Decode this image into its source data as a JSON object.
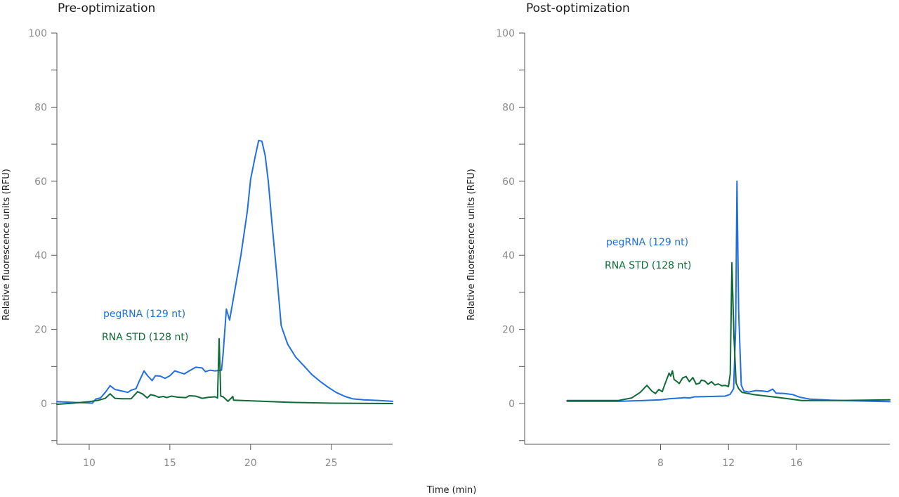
{
  "xlabel": "Time (min)",
  "colors": {
    "pegRNA": "#1f6fe0",
    "rna_std": "#0f6a38"
  },
  "chart_data": [
    {
      "type": "line",
      "title": "Pre-optimization",
      "ylabel": "Relative fluorescence units (RFU)",
      "xlim": [
        8,
        28.8
      ],
      "ylim": [
        -11,
        100
      ],
      "x_ticks": [
        10,
        15,
        20,
        25
      ],
      "x_tick_labels": [
        "10",
        "15",
        "20",
        "25"
      ],
      "y_ticks": [
        0,
        20,
        40,
        60,
        80,
        100
      ],
      "y_tick_labels": [
        "0",
        "20",
        "40",
        "60",
        "80",
        "100"
      ],
      "legend": [
        {
          "label": "pegRNA (129 nt)",
          "color": "#1f6fe0"
        },
        {
          "label": "RNA STD (128 nt)",
          "color": "#0f6a38"
        }
      ],
      "series": [
        {
          "name": "pegRNA (129 nt)",
          "color": "#1f6fe0",
          "points": [
            [
              8.0,
              0.5
            ],
            [
              9.0,
              0.3
            ],
            [
              10.2,
              0.1
            ],
            [
              10.4,
              1.2
            ],
            [
              10.7,
              1.5
            ],
            [
              11.0,
              3.0
            ],
            [
              11.3,
              4.8
            ],
            [
              11.6,
              3.8
            ],
            [
              12.0,
              3.4
            ],
            [
              12.4,
              3.0
            ],
            [
              12.6,
              3.6
            ],
            [
              12.9,
              4.0
            ],
            [
              13.1,
              6.0
            ],
            [
              13.4,
              8.8
            ],
            [
              13.6,
              7.6
            ],
            [
              13.9,
              6.2
            ],
            [
              14.1,
              7.5
            ],
            [
              14.4,
              7.4
            ],
            [
              14.7,
              6.8
            ],
            [
              15.0,
              7.5
            ],
            [
              15.3,
              8.8
            ],
            [
              15.6,
              8.4
            ],
            [
              15.9,
              8.0
            ],
            [
              16.2,
              8.8
            ],
            [
              16.6,
              9.8
            ],
            [
              17.0,
              9.6
            ],
            [
              17.2,
              8.6
            ],
            [
              17.5,
              9.0
            ],
            [
              17.8,
              8.8
            ],
            [
              18.2,
              9.0
            ],
            [
              18.3,
              13.5
            ],
            [
              18.5,
              25.5
            ],
            [
              18.7,
              22.5
            ],
            [
              19.0,
              30.0
            ],
            [
              19.4,
              40.0
            ],
            [
              19.8,
              52.0
            ],
            [
              20.0,
              60.5
            ],
            [
              20.3,
              67.0
            ],
            [
              20.5,
              71.0
            ],
            [
              20.7,
              70.8
            ],
            [
              20.9,
              67.0
            ],
            [
              21.1,
              60.0
            ],
            [
              21.3,
              50.0
            ],
            [
              21.6,
              36.0
            ],
            [
              21.9,
              21.0
            ],
            [
              22.3,
              16.0
            ],
            [
              22.8,
              12.5
            ],
            [
              23.3,
              10.2
            ],
            [
              23.8,
              7.8
            ],
            [
              24.3,
              6.0
            ],
            [
              24.8,
              4.4
            ],
            [
              25.3,
              3.0
            ],
            [
              25.8,
              2.0
            ],
            [
              26.3,
              1.3
            ],
            [
              27.0,
              1.0
            ],
            [
              28.0,
              0.8
            ],
            [
              28.8,
              0.6
            ]
          ]
        },
        {
          "name": "RNA STD (128 nt)",
          "color": "#0f6a38",
          "points": [
            [
              8.0,
              -0.2
            ],
            [
              9.0,
              0.1
            ],
            [
              10.0,
              0.5
            ],
            [
              10.6,
              0.9
            ],
            [
              11.0,
              1.4
            ],
            [
              11.3,
              2.6
            ],
            [
              11.6,
              1.4
            ],
            [
              12.0,
              1.3
            ],
            [
              12.6,
              1.3
            ],
            [
              13.0,
              3.2
            ],
            [
              13.3,
              2.6
            ],
            [
              13.6,
              1.5
            ],
            [
              13.8,
              2.4
            ],
            [
              14.1,
              2.1
            ],
            [
              14.3,
              1.7
            ],
            [
              14.6,
              1.9
            ],
            [
              14.8,
              1.6
            ],
            [
              15.1,
              2.0
            ],
            [
              15.5,
              1.7
            ],
            [
              16.0,
              1.6
            ],
            [
              16.2,
              2.1
            ],
            [
              16.6,
              2.0
            ],
            [
              17.0,
              1.4
            ],
            [
              17.4,
              1.7
            ],
            [
              17.8,
              1.8
            ],
            [
              17.95,
              1.5
            ],
            [
              18.05,
              17.5
            ],
            [
              18.15,
              2.0
            ],
            [
              18.3,
              1.8
            ],
            [
              18.6,
              0.6
            ],
            [
              18.9,
              1.9
            ],
            [
              18.95,
              0.9
            ],
            [
              19.5,
              0.8
            ],
            [
              22.5,
              0.3
            ],
            [
              25.0,
              0.1
            ],
            [
              28.8,
              0.0
            ]
          ]
        }
      ]
    },
    {
      "type": "line",
      "title": "Post-optimization",
      "ylabel": "Relative fluorescence units (RFU)",
      "xlim": [
        0,
        21.5
      ],
      "ylim": [
        -11,
        100
      ],
      "x_ticks": [
        8,
        12,
        16
      ],
      "x_tick_labels": [
        "8",
        "12",
        "16"
      ],
      "y_ticks": [
        0,
        20,
        40,
        60,
        80,
        100
      ],
      "y_tick_labels": [
        "0",
        "20",
        "40",
        "60",
        "80",
        "100"
      ],
      "legend": [
        {
          "label": "pegRNA (129 nt)",
          "color": "#1f6fe0"
        },
        {
          "label": "RNA STD (128 nt)",
          "color": "#0f6a38"
        }
      ],
      "series": [
        {
          "name": "pegRNA (129 nt)",
          "color": "#1f6fe0",
          "points": [
            [
              2.5,
              0.6
            ],
            [
              4.0,
              0.6
            ],
            [
              5.5,
              0.6
            ],
            [
              7.0,
              0.8
            ],
            [
              8.0,
              1.0
            ],
            [
              8.5,
              1.3
            ],
            [
              8.9,
              1.4
            ],
            [
              9.2,
              1.5
            ],
            [
              9.4,
              1.6
            ],
            [
              9.7,
              1.5
            ],
            [
              10.0,
              1.8
            ],
            [
              11.0,
              1.9
            ],
            [
              11.8,
              2.0
            ],
            [
              12.1,
              2.5
            ],
            [
              12.3,
              4.0
            ],
            [
              12.42,
              20.0
            ],
            [
              12.5,
              60.0
            ],
            [
              12.6,
              25.0
            ],
            [
              12.75,
              5.0
            ],
            [
              12.9,
              3.4
            ],
            [
              13.2,
              3.1
            ],
            [
              13.6,
              3.5
            ],
            [
              14.0,
              3.4
            ],
            [
              14.3,
              3.2
            ],
            [
              14.6,
              3.9
            ],
            [
              14.8,
              2.8
            ],
            [
              15.3,
              2.7
            ],
            [
              15.8,
              2.4
            ],
            [
              16.2,
              1.7
            ],
            [
              16.8,
              1.2
            ],
            [
              18.0,
              0.9
            ],
            [
              19.5,
              0.7
            ],
            [
              21.5,
              0.5
            ]
          ]
        },
        {
          "name": "RNA STD (128 nt)",
          "color": "#0f6a38",
          "points": [
            [
              2.5,
              0.8
            ],
            [
              4.0,
              0.8
            ],
            [
              5.5,
              0.8
            ],
            [
              6.3,
              1.5
            ],
            [
              6.8,
              3.0
            ],
            [
              7.2,
              4.9
            ],
            [
              7.5,
              3.3
            ],
            [
              7.7,
              2.7
            ],
            [
              7.9,
              3.8
            ],
            [
              8.1,
              3.2
            ],
            [
              8.2,
              4.5
            ],
            [
              8.5,
              8.2
            ],
            [
              8.6,
              7.4
            ],
            [
              8.7,
              8.8
            ],
            [
              8.8,
              6.5
            ],
            [
              9.0,
              5.8
            ],
            [
              9.1,
              5.4
            ],
            [
              9.3,
              6.9
            ],
            [
              9.5,
              7.3
            ],
            [
              9.7,
              5.9
            ],
            [
              9.9,
              7.0
            ],
            [
              10.1,
              5.2
            ],
            [
              10.3,
              5.5
            ],
            [
              10.4,
              6.3
            ],
            [
              10.6,
              6.1
            ],
            [
              10.8,
              5.2
            ],
            [
              11.0,
              5.9
            ],
            [
              11.2,
              5.0
            ],
            [
              11.4,
              5.3
            ],
            [
              11.6,
              4.8
            ],
            [
              11.8,
              4.9
            ],
            [
              12.0,
              4.6
            ],
            [
              12.1,
              8.0
            ],
            [
              12.2,
              38.0
            ],
            [
              12.32,
              18.0
            ],
            [
              12.45,
              5.5
            ],
            [
              12.6,
              4.0
            ],
            [
              12.8,
              3.0
            ],
            [
              13.5,
              2.4
            ],
            [
              15.0,
              1.6
            ],
            [
              16.3,
              0.8
            ],
            [
              18.5,
              0.8
            ],
            [
              21.5,
              1.0
            ]
          ]
        }
      ]
    }
  ]
}
